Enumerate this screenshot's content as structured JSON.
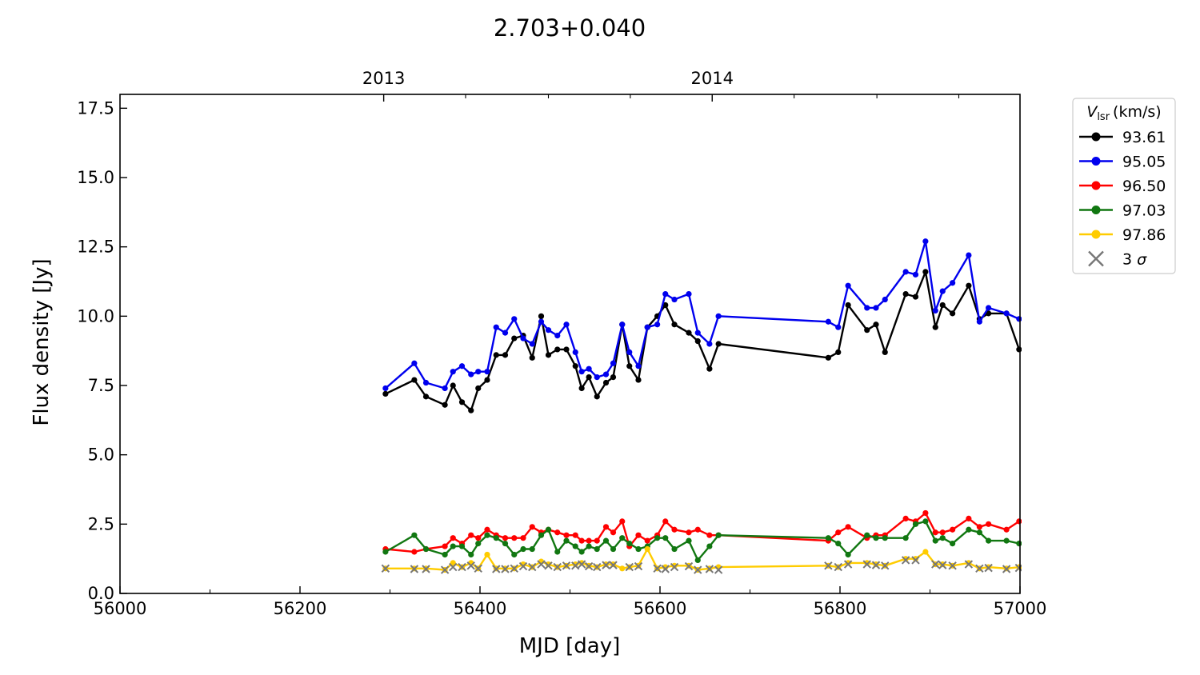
{
  "chart_data": {
    "type": "line",
    "title": "2.703+0.040",
    "xlabel": "MJD [day]",
    "ylabel": "Flux density [Jy]",
    "xlim": [
      56000,
      57000
    ],
    "ylim": [
      0,
      18
    ],
    "xticks": [
      "56000",
      "56200",
      "56400",
      "56600",
      "56800",
      "57000"
    ],
    "yticks": [
      "0.0",
      "2.5",
      "5.0",
      "7.5",
      "10.0",
      "12.5",
      "15.0",
      "17.5"
    ],
    "top_axis": {
      "ticks": [
        "2013",
        "2014"
      ],
      "mjd_positions": [
        56293,
        56658
      ]
    },
    "legend": {
      "title_main": "V",
      "title_sub": "lsr",
      "title_unit": "(km/s)",
      "placement": "outside-right-top",
      "sigma_label": "3 σ"
    },
    "colors": {
      "sigma_marker": "#777777"
    },
    "series": [
      {
        "name": "93.61",
        "color": "#000000",
        "x": [
          56295,
          56327,
          56340,
          56361,
          56370,
          56380,
          56390,
          56398,
          56408,
          56418,
          56428,
          56438,
          56448,
          56458,
          56468,
          56476,
          56486,
          56496,
          56506,
          56513,
          56521,
          56530,
          56540,
          56548,
          56558,
          56566,
          56576,
          56586,
          56597,
          56606,
          56616,
          56632,
          56642,
          56655,
          56665,
          56787,
          56798,
          56809,
          56830,
          56840,
          56850,
          56873,
          56884,
          56895,
          56906,
          56914,
          56925,
          56943,
          56955,
          56965,
          56985,
          56999
        ],
        "y": [
          7.2,
          7.7,
          7.1,
          6.8,
          7.5,
          6.9,
          6.6,
          7.4,
          7.7,
          8.6,
          8.6,
          9.2,
          9.3,
          8.5,
          10.0,
          8.6,
          8.8,
          8.8,
          8.2,
          7.4,
          7.8,
          7.1,
          7.6,
          7.8,
          9.7,
          8.2,
          7.7,
          9.6,
          10.0,
          10.4,
          9.7,
          9.4,
          9.1,
          8.1,
          9.0,
          8.5,
          8.7,
          10.4,
          9.5,
          9.7,
          8.7,
          10.8,
          10.7,
          11.6,
          9.6,
          10.4,
          10.1,
          11.1,
          9.9,
          10.1,
          10.1,
          8.8
        ]
      },
      {
        "name": "95.05",
        "color": "#0000ee",
        "x": [
          56295,
          56327,
          56340,
          56361,
          56370,
          56380,
          56390,
          56398,
          56408,
          56418,
          56428,
          56438,
          56448,
          56458,
          56468,
          56476,
          56486,
          56496,
          56506,
          56513,
          56521,
          56530,
          56540,
          56548,
          56558,
          56566,
          56576,
          56586,
          56597,
          56606,
          56616,
          56632,
          56642,
          56655,
          56665,
          56787,
          56798,
          56809,
          56830,
          56840,
          56850,
          56873,
          56884,
          56895,
          56906,
          56914,
          56925,
          56943,
          56955,
          56965,
          56985,
          56999
        ],
        "y": [
          7.4,
          8.3,
          7.6,
          7.4,
          8.0,
          8.2,
          7.9,
          8.0,
          8.0,
          9.6,
          9.4,
          9.9,
          9.2,
          9.0,
          9.8,
          9.5,
          9.3,
          9.7,
          8.7,
          8.0,
          8.1,
          7.8,
          7.9,
          8.3,
          9.7,
          8.7,
          8.2,
          9.6,
          9.7,
          10.8,
          10.6,
          10.8,
          9.4,
          9.0,
          10.0,
          9.8,
          9.6,
          11.1,
          10.3,
          10.3,
          10.6,
          11.6,
          11.5,
          12.7,
          10.2,
          10.9,
          11.2,
          12.2,
          9.8,
          10.3,
          10.1,
          9.9
        ]
      },
      {
        "name": "96.50",
        "color": "#ff0000",
        "x": [
          56295,
          56327,
          56340,
          56361,
          56370,
          56380,
          56390,
          56398,
          56408,
          56418,
          56428,
          56438,
          56448,
          56458,
          56468,
          56476,
          56486,
          56496,
          56506,
          56513,
          56521,
          56530,
          56540,
          56548,
          56558,
          56566,
          56576,
          56586,
          56597,
          56606,
          56616,
          56632,
          56642,
          56655,
          56665,
          56787,
          56798,
          56809,
          56830,
          56840,
          56850,
          56873,
          56884,
          56895,
          56906,
          56914,
          56925,
          56943,
          56955,
          56965,
          56985,
          56999
        ],
        "y": [
          1.6,
          1.5,
          1.6,
          1.7,
          2.0,
          1.8,
          2.1,
          2.0,
          2.3,
          2.1,
          2.0,
          2.0,
          2.0,
          2.4,
          2.2,
          2.3,
          2.2,
          2.1,
          2.1,
          1.9,
          1.9,
          1.9,
          2.4,
          2.2,
          2.6,
          1.7,
          2.1,
          1.9,
          2.1,
          2.6,
          2.3,
          2.2,
          2.3,
          2.1,
          2.1,
          1.9,
          2.2,
          2.4,
          2.0,
          2.1,
          2.1,
          2.7,
          2.6,
          2.9,
          2.2,
          2.2,
          2.3,
          2.7,
          2.4,
          2.5,
          2.3,
          2.6
        ]
      },
      {
        "name": "97.03",
        "color": "#117711",
        "x": [
          56295,
          56327,
          56340,
          56361,
          56370,
          56380,
          56390,
          56398,
          56408,
          56418,
          56428,
          56438,
          56448,
          56458,
          56468,
          56476,
          56486,
          56496,
          56506,
          56513,
          56521,
          56530,
          56540,
          56548,
          56558,
          56566,
          56576,
          56586,
          56597,
          56606,
          56616,
          56632,
          56642,
          56655,
          56665,
          56787,
          56798,
          56809,
          56830,
          56840,
          56850,
          56873,
          56884,
          56895,
          56906,
          56914,
          56925,
          56943,
          56955,
          56965,
          56985,
          56999
        ],
        "y": [
          1.5,
          2.1,
          1.6,
          1.4,
          1.7,
          1.7,
          1.4,
          1.8,
          2.1,
          2.0,
          1.8,
          1.4,
          1.6,
          1.6,
          2.1,
          2.3,
          1.5,
          1.9,
          1.7,
          1.5,
          1.7,
          1.6,
          1.9,
          1.6,
          2.0,
          1.8,
          1.6,
          1.7,
          2.0,
          2.0,
          1.6,
          1.9,
          1.2,
          1.7,
          2.1,
          2.0,
          1.8,
          1.4,
          2.1,
          2.0,
          2.0,
          2.0,
          2.5,
          2.6,
          1.9,
          2.0,
          1.8,
          2.3,
          2.2,
          1.9,
          1.9,
          1.8
        ]
      },
      {
        "name": "97.86",
        "color": "#ffcc00",
        "x": [
          56295,
          56327,
          56340,
          56361,
          56370,
          56380,
          56390,
          56398,
          56408,
          56418,
          56428,
          56438,
          56448,
          56458,
          56468,
          56476,
          56486,
          56496,
          56506,
          56513,
          56521,
          56530,
          56540,
          56548,
          56558,
          56566,
          56576,
          56586,
          56597,
          56606,
          56616,
          56632,
          56642,
          56655,
          56665,
          56787,
          56798,
          56809,
          56830,
          56840,
          56850,
          56873,
          56884,
          56895,
          56906,
          56914,
          56925,
          56943,
          56955,
          56965,
          56985,
          56999
        ],
        "y": [
          0.9,
          0.9,
          0.9,
          0.85,
          1.1,
          0.95,
          1.1,
          0.9,
          1.4,
          0.9,
          0.9,
          0.9,
          1.05,
          0.95,
          1.15,
          1.05,
          0.95,
          1.0,
          1.05,
          1.1,
          1.0,
          0.95,
          1.05,
          1.05,
          0.9,
          0.95,
          1.0,
          1.6,
          0.9,
          0.95,
          1.0,
          1.0,
          0.85,
          0.9,
          0.95,
          1.0,
          0.95,
          1.1,
          1.1,
          1.05,
          1.0,
          1.25,
          1.25,
          1.5,
          1.05,
          1.05,
          1.0,
          1.1,
          0.9,
          0.95,
          0.9,
          0.95
        ]
      }
    ],
    "sigma_markers": {
      "x": [
        56295,
        56327,
        56340,
        56361,
        56370,
        56380,
        56390,
        56398,
        56418,
        56428,
        56438,
        56448,
        56458,
        56468,
        56476,
        56486,
        56496,
        56506,
        56513,
        56521,
        56530,
        56540,
        56548,
        56566,
        56576,
        56597,
        56606,
        56616,
        56632,
        56642,
        56655,
        56665,
        56787,
        56798,
        56809,
        56830,
        56840,
        56850,
        56873,
        56884,
        56906,
        56914,
        56925,
        56943,
        56955,
        56965,
        56985,
        56999
      ],
      "y": [
        0.9,
        0.88,
        0.88,
        0.85,
        0.95,
        0.95,
        1.0,
        0.9,
        0.88,
        0.88,
        0.9,
        0.98,
        0.95,
        1.05,
        1.0,
        0.95,
        1.0,
        1.0,
        1.05,
        0.98,
        0.95,
        1.02,
        1.02,
        0.95,
        0.98,
        0.9,
        0.88,
        0.95,
        0.98,
        0.85,
        0.88,
        0.85,
        1.0,
        0.95,
        1.05,
        1.05,
        1.02,
        1.0,
        1.2,
        1.2,
        1.05,
        1.02,
        1.0,
        1.05,
        0.9,
        0.92,
        0.88,
        0.92
      ]
    }
  }
}
